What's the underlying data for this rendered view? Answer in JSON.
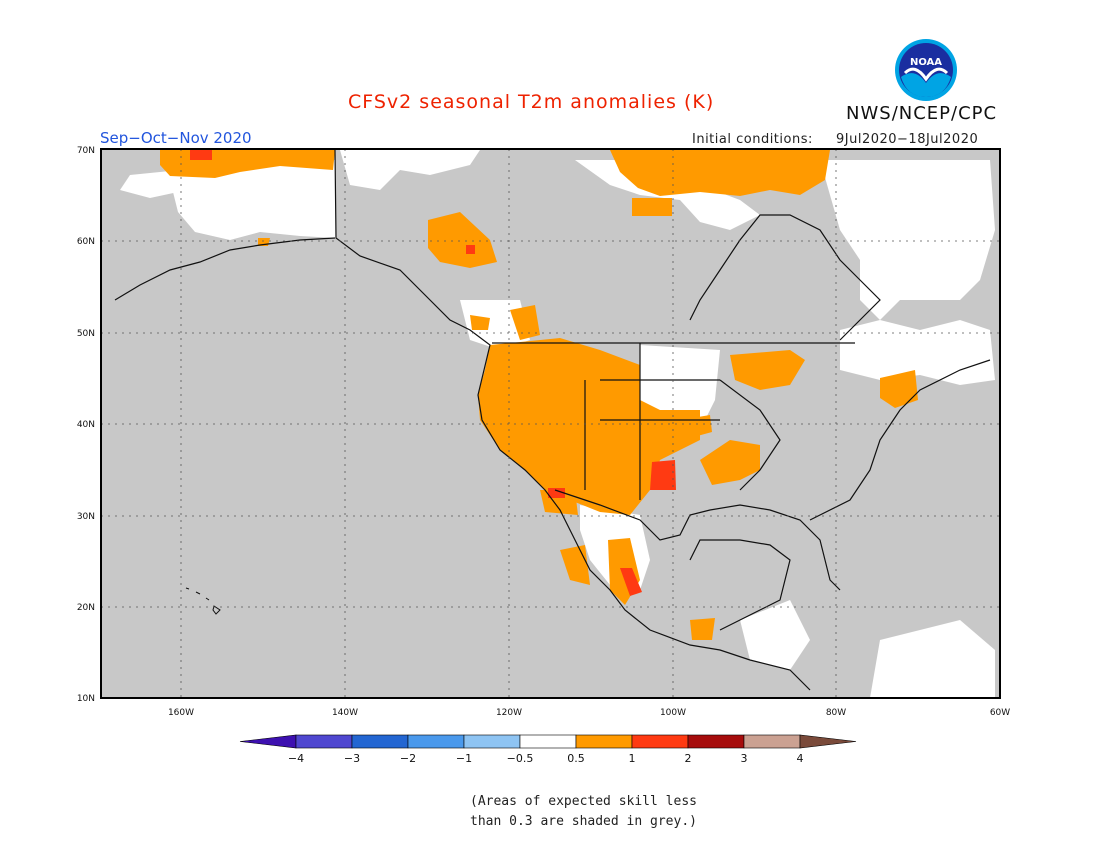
{
  "title": "CFSv2 seasonal T2m anomalies (K)",
  "agency": "NWS/NCEP/CPC",
  "logo_text": "NOAA",
  "season": "Sep−Oct−Nov 2020",
  "initial_conditions": {
    "label": "Initial conditions:",
    "value": "9Jul2020−18Jul2020"
  },
  "map": {
    "lat_labels": [
      "70N",
      "60N",
      "50N",
      "40N",
      "30N",
      "20N",
      "10N"
    ],
    "lon_labels": [
      "160W",
      "140W",
      "120W",
      "100W",
      "80W",
      "60W"
    ],
    "colors": {
      "ocean_grey": "#c8c8c8",
      "land_white": "#ffffff",
      "orange": "#ff9a00",
      "red": "#ff3a12",
      "dark_red": "#9b0000"
    }
  },
  "colorbar": {
    "labels": [
      "−4",
      "−3",
      "−2",
      "−1",
      "−0.5",
      "0.5",
      "1",
      "2",
      "3",
      "4"
    ],
    "colors": [
      "#3d10b0",
      "#4f47d0",
      "#2366d2",
      "#4a99ec",
      "#8ec4f3",
      "#ffffff",
      "#ff9a00",
      "#ff3a12",
      "#a60c0c",
      "#cba192",
      "#7a4a3a"
    ]
  },
  "note": {
    "line1": "(Areas of expected skill less",
    "line2": "than 0.3 are shaded in grey.)"
  }
}
